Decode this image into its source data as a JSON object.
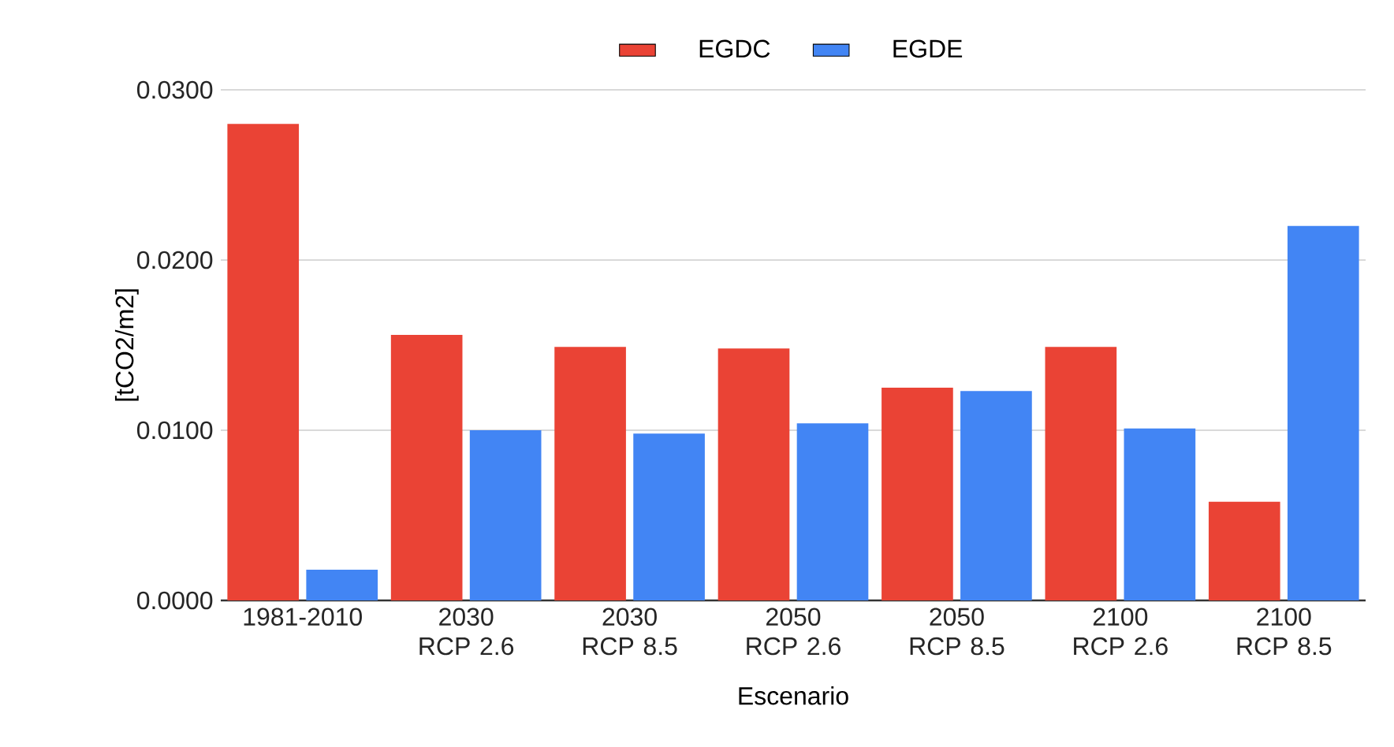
{
  "chart_data": {
    "type": "bar",
    "xlabel": "Escenario",
    "ylabel": "[tCO2/m2]",
    "categories": [
      "1981-2010",
      "2030 RCP 2.6",
      "2030 RCP 8.5",
      "2050 RCP 2.6",
      "2050 RCP 8.5",
      "2100 RCP 2.6",
      "2100 RCP 8.5"
    ],
    "series": [
      {
        "name": "EGDC",
        "color": "#ea4335",
        "values": [
          0.028,
          0.0156,
          0.0149,
          0.0148,
          0.0125,
          0.0149,
          0.0058
        ]
      },
      {
        "name": "EGDE",
        "color": "#4285f4",
        "values": [
          0.0018,
          0.01,
          0.0098,
          0.0104,
          0.0123,
          0.0101,
          0.022
        ]
      }
    ],
    "ylim": [
      0,
      0.03
    ],
    "yticks": [
      {
        "value": 0,
        "label": "0.0000"
      },
      {
        "value": 0.01,
        "label": "0.0100"
      },
      {
        "value": 0.02,
        "label": "0.0200"
      },
      {
        "value": 0.03,
        "label": "0.0300"
      }
    ],
    "grid": "y",
    "legend": "top"
  }
}
